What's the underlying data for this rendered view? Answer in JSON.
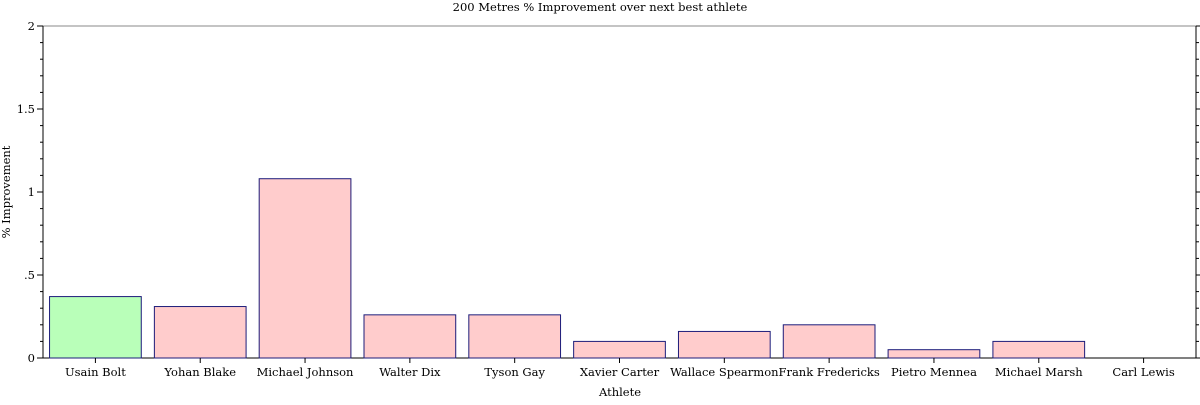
{
  "chart_data": {
    "type": "bar",
    "title": "200 Metres % Improvement over next best athlete",
    "xlabel": "Athlete",
    "ylabel": "% Improvement",
    "ylim": [
      0,
      2
    ],
    "yticks": [
      {
        "value": 0,
        "label": "0"
      },
      {
        "value": 0.5,
        "label": ".5"
      },
      {
        "value": 1,
        "label": "1"
      },
      {
        "value": 1.5,
        "label": "1.5"
      },
      {
        "value": 2,
        "label": "2"
      }
    ],
    "grid": false,
    "categories": [
      "Usain Bolt",
      "Yohan Blake",
      "Michael Johnson",
      "Walter Dix",
      "Tyson Gay",
      "Xavier Carter",
      "Wallace Spearmon",
      "Frank Fredericks",
      "Pietro Mennea",
      "Michael Marsh",
      "Carl Lewis"
    ],
    "values": [
      0.37,
      0.31,
      1.08,
      0.26,
      0.26,
      0.1,
      0.16,
      0.2,
      0.05,
      0.1,
      0.0
    ],
    "highlight_index": 0,
    "colors": {
      "highlight_fill": "#b9ffb9",
      "bar_fill": "#ffcccc",
      "bar_stroke": "#1c1c7a",
      "axis": "#000000"
    }
  }
}
